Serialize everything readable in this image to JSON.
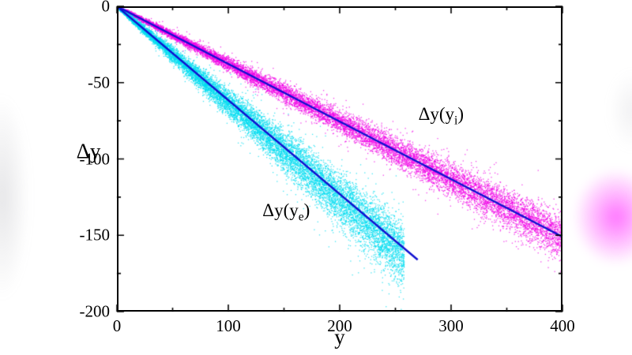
{
  "figure": {
    "background": "#ffffff",
    "glow_left_color": "#9a9aa2",
    "glow_right_color": "#ff00ff",
    "glow_right_top_color": "#b8b8c0"
  },
  "chart_data": {
    "type": "scatter",
    "title": "",
    "xlabel": "y",
    "ylabel": "Δy",
    "xlim": [
      0,
      400
    ],
    "ylim": [
      -200,
      0
    ],
    "x_ticks": [
      0,
      100,
      200,
      300,
      400
    ],
    "y_ticks": [
      0,
      -50,
      -100,
      -150,
      -200
    ],
    "x_minor_step": 50,
    "y_minor_step": 25,
    "grid": false,
    "legend_position": "none",
    "axis_color": "#000000",
    "series": [
      {
        "name": "delta-y-of-y-i",
        "label_pre": "Δy(y",
        "label_sub": "i",
        "label_post": ")",
        "point_color": "#f000e6",
        "x_min": 0,
        "x_max": 400,
        "slope": -0.378,
        "intercept": 0,
        "spread_base": 1.2,
        "spread_per_x": 0.05,
        "n_points": 12000,
        "fit_line": {
          "color": "#1010d0",
          "x1": 0,
          "y1": 0,
          "x2": 400,
          "y2": -151
        }
      },
      {
        "name": "delta-y-of-y-e",
        "label_pre": "Δy(y",
        "label_sub": "e",
        "label_post": ")",
        "point_color": "#00dcf0",
        "x_min": 0,
        "x_max": 258,
        "slope": -0.63,
        "intercept": 0,
        "spread_base": 1.5,
        "spread_per_x": 0.115,
        "n_points": 12000,
        "fit_line": {
          "color": "#1010d0",
          "x1": 0,
          "y1": 0,
          "x2": 270,
          "y2": -166
        }
      }
    ],
    "annotations": [
      {
        "pre": "Δy(y",
        "sub": "i",
        "post": ")",
        "x": 291,
        "y": -71
      },
      {
        "pre": "Δy(y",
        "sub": "e",
        "post": ")",
        "x": 152,
        "y": -134
      }
    ]
  }
}
